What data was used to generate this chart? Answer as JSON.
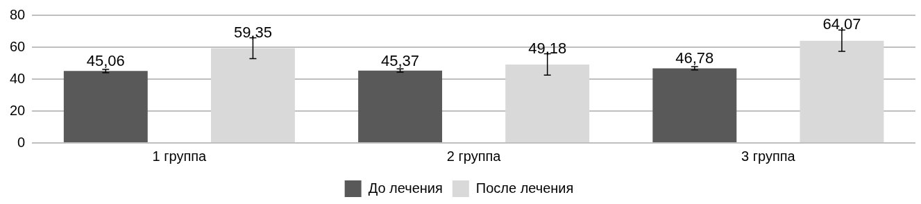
{
  "chart_data": {
    "type": "bar",
    "categories": [
      "1 группа",
      "2 группа",
      "3 группа"
    ],
    "series": [
      {
        "name": "До лечения",
        "color": "#595959",
        "values": [
          45.06,
          45.37,
          46.78
        ],
        "errors": [
          1,
          1,
          1
        ],
        "value_labels": [
          "45,06",
          "45,37",
          "46,78"
        ]
      },
      {
        "name": "После лечения",
        "color": "#d9d9d9",
        "values": [
          59.35,
          49.18,
          64.07
        ],
        "errors": [
          6.5,
          6.7,
          6.7
        ],
        "value_labels": [
          "59,35",
          "49,18",
          "64,07"
        ]
      }
    ],
    "ylim": [
      0,
      80
    ],
    "yticks": [
      0,
      20,
      40,
      60,
      80
    ],
    "grid": "y",
    "legend": "bottom"
  }
}
